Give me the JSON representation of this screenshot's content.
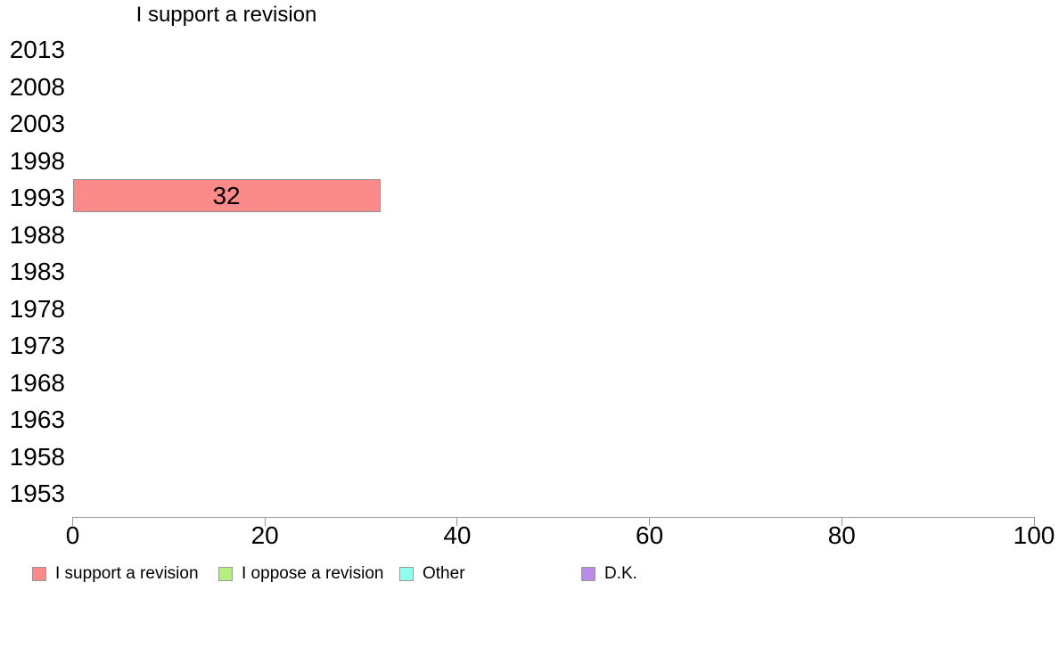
{
  "chart_data": {
    "type": "bar",
    "orientation": "horizontal",
    "title": "I support a revision",
    "categories": [
      "2013",
      "2008",
      "2003",
      "1998",
      "1993",
      "1988",
      "1983",
      "1978",
      "1973",
      "1968",
      "1963",
      "1958",
      "1953"
    ],
    "series": [
      {
        "name": "I support a revision",
        "color": "#FB8A8A",
        "values": [
          null,
          null,
          null,
          null,
          32,
          null,
          null,
          null,
          null,
          null,
          null,
          null,
          null
        ]
      },
      {
        "name": "I oppose a revision",
        "color": "#B5EF82",
        "values": [
          null,
          null,
          null,
          null,
          null,
          null,
          null,
          null,
          null,
          null,
          null,
          null,
          null
        ]
      },
      {
        "name": "Other",
        "color": "#8EFFEF",
        "values": [
          null,
          null,
          null,
          null,
          null,
          null,
          null,
          null,
          null,
          null,
          null,
          null,
          null
        ]
      },
      {
        "name": "D.K.",
        "color": "#B98AE8",
        "values": [
          null,
          null,
          null,
          null,
          null,
          null,
          null,
          null,
          null,
          null,
          null,
          null,
          null
        ]
      }
    ],
    "xlim": [
      0,
      100
    ],
    "xticks": [
      0,
      20,
      40,
      60,
      80,
      100
    ],
    "bar_labels_shown": true,
    "legend_position": "bottom",
    "grid": false,
    "axis_color": "#999999",
    "bar_border_color": "#919191",
    "text_color": "#000000",
    "background_color": "#FFFFFF"
  }
}
